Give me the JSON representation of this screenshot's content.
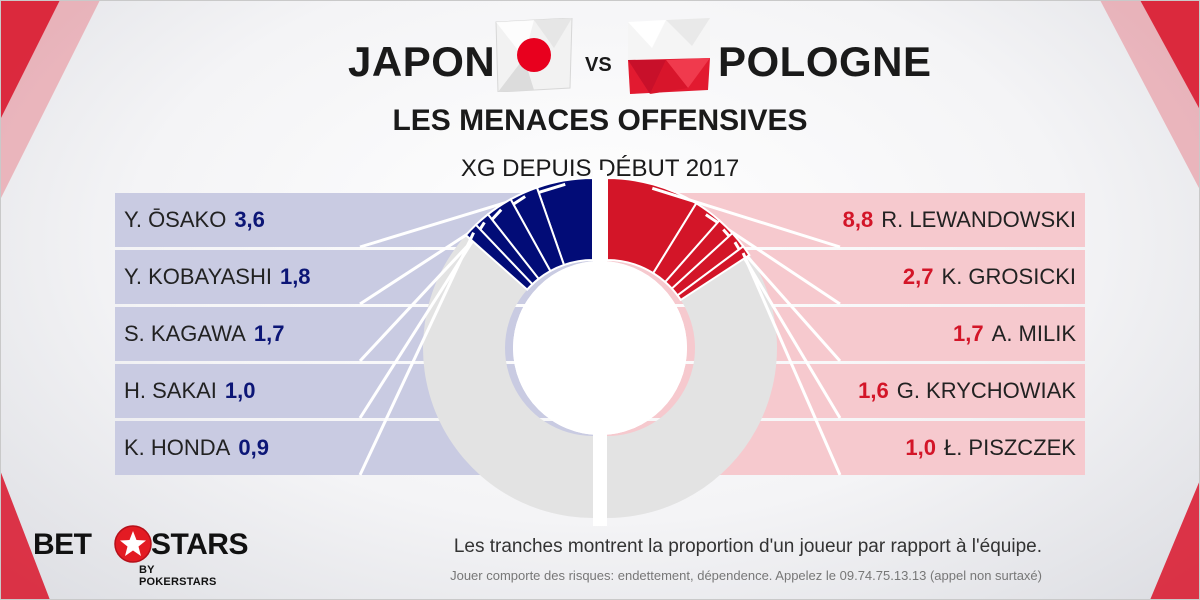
{
  "header": {
    "team_left": "JAPON",
    "vs": "VS",
    "team_right": "POLOGNE"
  },
  "title": "LES MENACES OFFENSIVES",
  "subtitle": "XG DEPUIS DÉBUT 2017",
  "colors": {
    "japan": "#020c77",
    "japan_panel": "#c9cbe2",
    "poland": "#d31528",
    "poland_panel": "#f6c9ce",
    "rest": "#e3e3e3"
  },
  "chart_data": [
    {
      "type": "donut",
      "team": "JAPON",
      "categories": [
        "Y. ŌSAKO",
        "Y. KOBAYASHI",
        "S. KAGAWA",
        "H. SAKAI",
        "K. HONDA"
      ],
      "value_labels": [
        "3,6",
        "1,8",
        "1,7",
        "1,0",
        "0,9"
      ],
      "values": [
        3.6,
        1.8,
        1.7,
        1.0,
        0.9
      ],
      "share_of_team": [
        0.107,
        0.054,
        0.051,
        0.03,
        0.027
      ]
    },
    {
      "type": "donut",
      "team": "POLOGNE",
      "categories": [
        "R. LEWANDOWSKI",
        "K. GROSICKI",
        "A. MILIK",
        "G. KRYCHOWIAK",
        "Ł. PISZCZEK"
      ],
      "value_labels": [
        "8,8",
        "2,7",
        "1,7",
        "1,6",
        "1,0"
      ],
      "values": [
        8.8,
        2.7,
        1.7,
        1.6,
        1.0
      ],
      "share_of_team": [
        0.176,
        0.054,
        0.034,
        0.032,
        0.02
      ]
    }
  ],
  "footer": {
    "brand_bet": "BET",
    "brand_stars": "STARS",
    "brand_sub": "BY POKERSTARS",
    "note": "Les tranches montrent la proportion d'un joueur par rapport à l'équipe.",
    "disclaimer": "Jouer comporte des risques: endettement, dépendence. Appelez le 09.74.75.13.13 (appel non surtaxé)"
  }
}
